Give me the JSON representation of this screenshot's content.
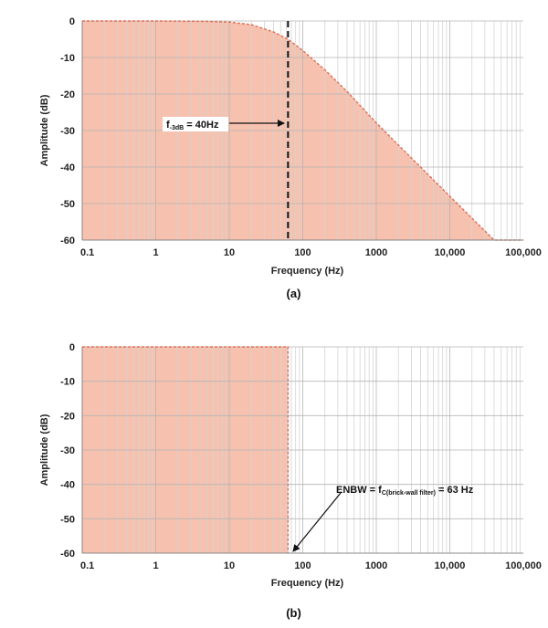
{
  "colors": {
    "fill": "#f6c1ae",
    "curve": "#e0735a",
    "grid": "#d4d4d4",
    "grid_major": "#b5b5b5",
    "marker": "#111111"
  },
  "chart_data": [
    {
      "type": "area",
      "panel_label": "(a)",
      "xlabel": "Frequency (Hz)",
      "ylabel": "Amplitude (dB)",
      "xscale": "log",
      "xlim": [
        0.1,
        100000
      ],
      "ylim": [
        -60,
        0
      ],
      "x_ticks": [
        0.1,
        1,
        10,
        100,
        1000,
        10000,
        100000
      ],
      "x_tick_labels": [
        "0.1",
        "1",
        "10",
        "100",
        "1000",
        "10,000",
        "100,000"
      ],
      "y_ticks": [
        0,
        -10,
        -20,
        -30,
        -40,
        -50,
        -60
      ],
      "y_tick_labels": [
        "0",
        "-10",
        "-20",
        "-30",
        "-40",
        "-50",
        "-60"
      ],
      "grid": true,
      "series": [
        {
          "x": [
            0.1,
            1,
            5,
            10,
            20,
            40,
            63,
            100,
            200,
            400,
            1000,
            2000,
            4000,
            10000,
            20000,
            40000,
            100000
          ],
          "y": [
            0,
            0,
            -0.1,
            -0.3,
            -1,
            -3,
            -5,
            -8.1,
            -13.4,
            -19.3,
            -27.9,
            -34,
            -40,
            -48,
            -54,
            -60,
            -60
          ]
        }
      ],
      "marker_line": {
        "x": 63
      },
      "annotation": {
        "main": "f",
        "sub": "-3dB",
        "rest": " = 40Hz"
      }
    },
    {
      "type": "area",
      "panel_label": "(b)",
      "xlabel": "Frequency (Hz)",
      "ylabel": "Amplitude (dB)",
      "xscale": "log",
      "xlim": [
        0.1,
        100000
      ],
      "ylim": [
        -60,
        0
      ],
      "x_ticks": [
        0.1,
        1,
        10,
        100,
        1000,
        10000,
        100000
      ],
      "x_tick_labels": [
        "0.1",
        "1",
        "10",
        "100",
        "1000",
        "10,000",
        "100,000"
      ],
      "y_ticks": [
        0,
        -10,
        -20,
        -30,
        -40,
        -50,
        -60
      ],
      "y_tick_labels": [
        "0",
        "-10",
        "-20",
        "-30",
        "-40",
        "-50",
        "-60"
      ],
      "grid": true,
      "series": [
        {
          "x": [
            0.1,
            63,
            63
          ],
          "y": [
            0,
            0,
            -60
          ]
        }
      ],
      "annotation": {
        "main": "ENBW = f",
        "sub": "C(brick-wall filter)",
        "rest": " = 63 Hz"
      }
    }
  ]
}
